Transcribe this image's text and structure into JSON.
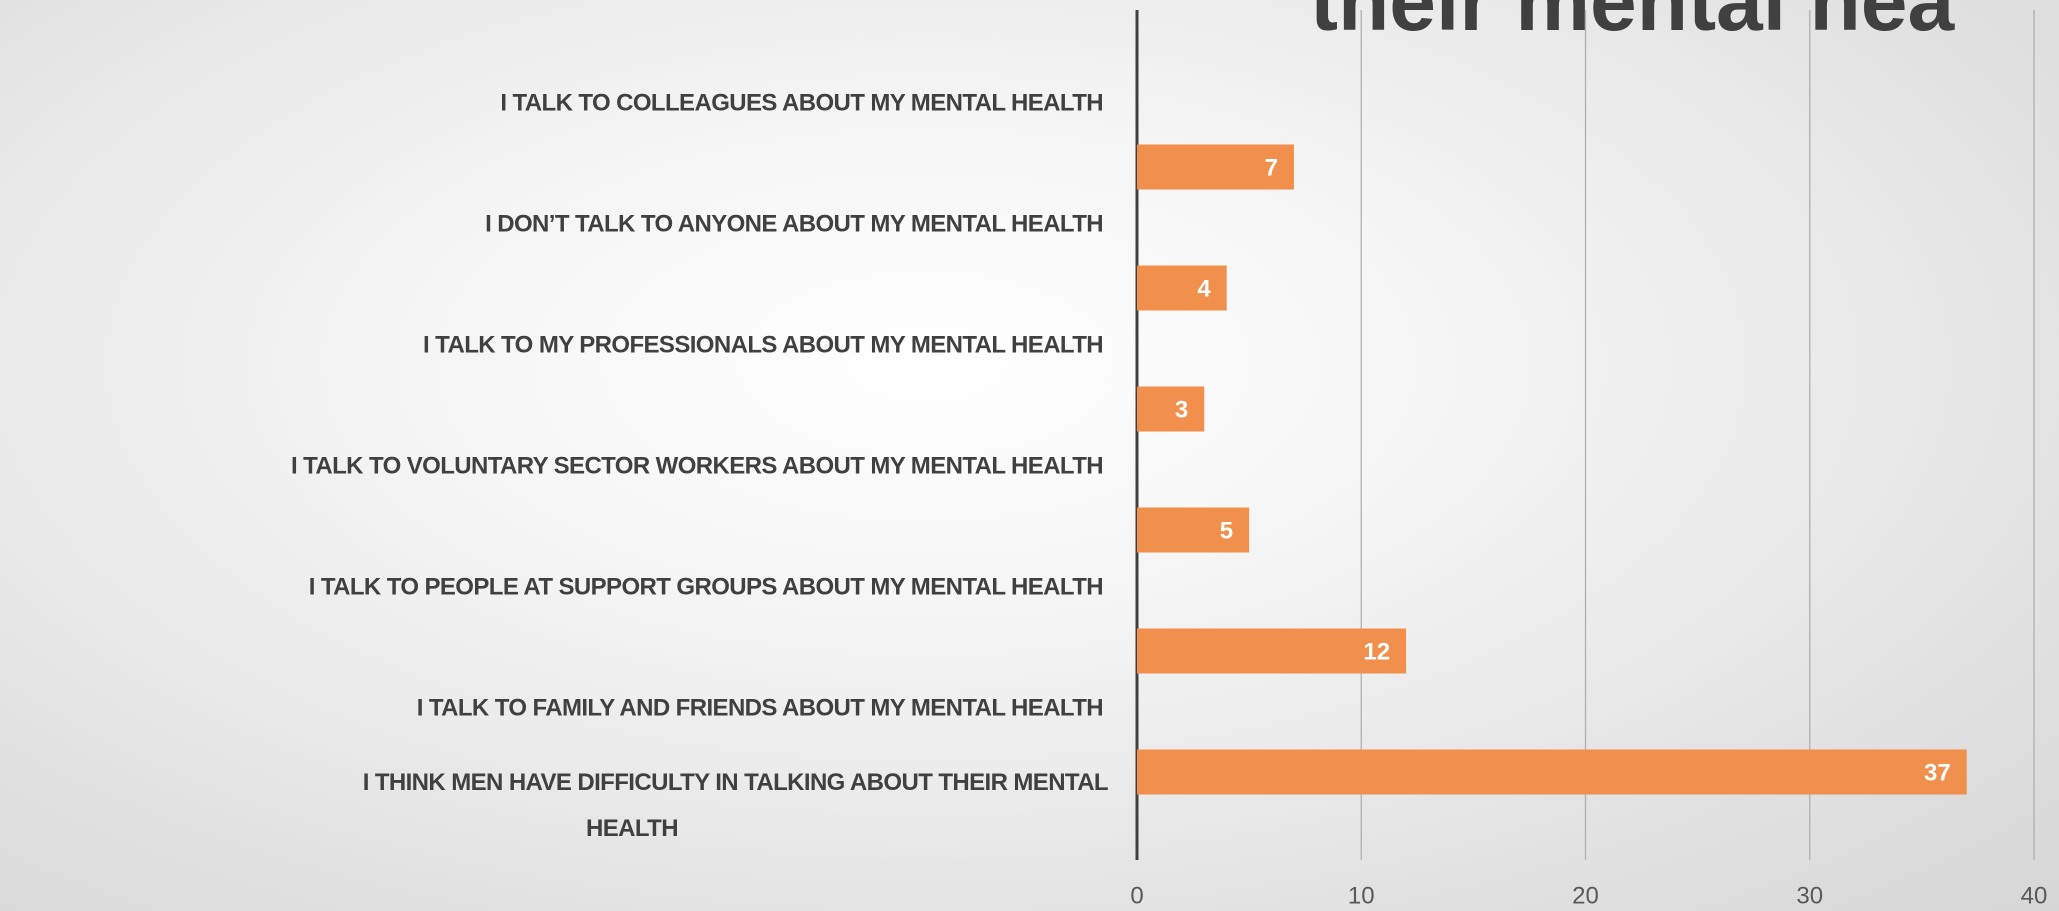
{
  "chart_data": {
    "type": "bar",
    "orientation": "horizontal",
    "title": "their mental hea",
    "categories": [
      "I TALK TO COLLEAGUES ABOUT MY MENTAL HEALTH",
      "I DON’T TALK TO ANYONE ABOUT MY MENTAL HEALTH",
      "I TALK TO MY PROFESSIONALS ABOUT MY MENTAL HEALTH",
      "I TALK TO VOLUNTARY SECTOR WORKERS ABOUT MY MENTAL HEALTH",
      "I TALK TO PEOPLE AT SUPPORT GROUPS ABOUT MY MENTAL HEALTH",
      "I TALK TO FAMILY AND FRIENDS ABOUT MY MENTAL HEALTH",
      "I THINK MEN HAVE DIFFICULTY IN TALKING ABOUT THEIR MENTAL HEALTH"
    ],
    "values": [
      null,
      7,
      4,
      3,
      5,
      12,
      37
    ],
    "color": "#f0904c",
    "xlim": [
      0,
      40
    ],
    "xticks": [
      0,
      10,
      20,
      30,
      40
    ],
    "grid": true
  }
}
